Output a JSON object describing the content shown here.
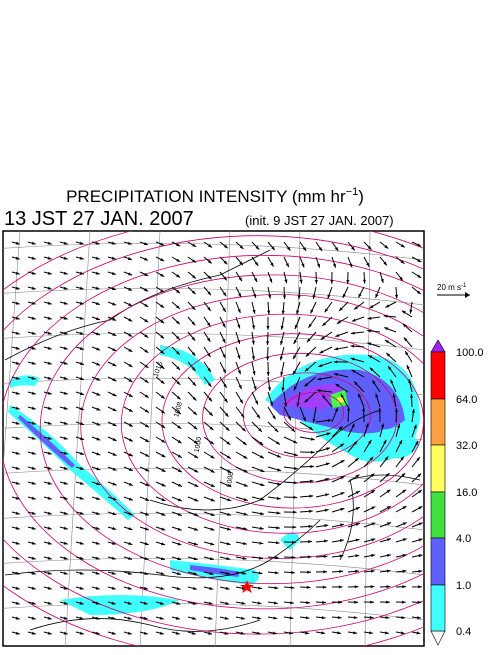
{
  "header": {
    "title": "PRECIPITATION INTENSITY (mm hr",
    "title_exp": "−1",
    "title_end": ")",
    "valid_time": "13 JST 27 JAN. 2007",
    "init": "(init. 9 JST 27 JAN. 2007)"
  },
  "vector_scale": {
    "label": "20 m s",
    "exp": "-1"
  },
  "colorbar": {
    "labels": [
      "100.0",
      "64.0",
      "32.0",
      "16.0",
      "4.0",
      "1.0",
      "0.4"
    ]
  },
  "contour_labels": [
    "1016",
    "1008",
    "1000",
    "1008"
  ]
}
